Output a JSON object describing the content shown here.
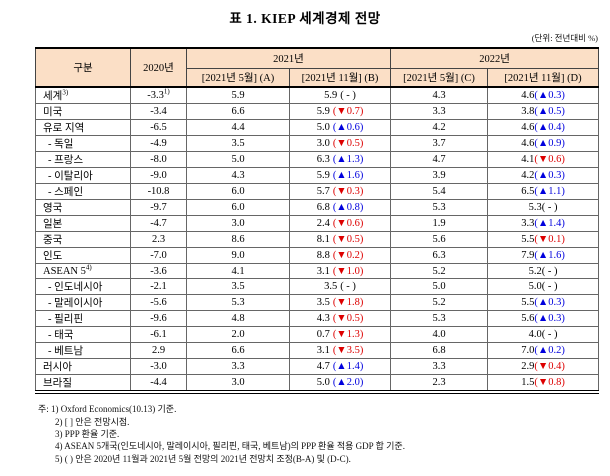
{
  "title": "표 1. KIEP 세계경제 전망",
  "unit_note": "(단위: 전년대비 %)",
  "colors": {
    "up": "#0000dd",
    "down": "#dd0000",
    "flat": "#000000",
    "header_bg": "#fbdfc6"
  },
  "columns": {
    "category": "구분",
    "y2020": "2020년",
    "y2021": "2021년",
    "y2022": "2022년",
    "sub_a": "[2021년 5월] (A)",
    "sub_b": "[2021년 11월] (B)",
    "sub_c": "[2021년 5월] (C)",
    "sub_d": "[2021년 11월] (D)"
  },
  "rows": [
    {
      "label": "세계",
      "sup": "3)",
      "indent": false,
      "y2020": "-3.3",
      "y2020_sup": "1)",
      "a": "5.9",
      "b": "5.9",
      "b_chg": "( - )",
      "b_dir": "flat",
      "c": "4.3",
      "d": "4.6",
      "d_chg": "(▲0.3)",
      "d_dir": "up"
    },
    {
      "label": "미국",
      "sup": "",
      "indent": false,
      "y2020": "-3.4",
      "y2020_sup": "",
      "a": "6.6",
      "b": "5.9",
      "b_chg": "(▼0.7)",
      "b_dir": "down",
      "c": "3.3",
      "d": "3.8",
      "d_chg": "(▲0.5)",
      "d_dir": "up"
    },
    {
      "label": "유로 지역",
      "sup": "",
      "indent": false,
      "y2020": "-6.5",
      "y2020_sup": "",
      "a": "4.4",
      "b": "5.0",
      "b_chg": "(▲0.6)",
      "b_dir": "up",
      "c": "4.2",
      "d": "4.6",
      "d_chg": "(▲0.4)",
      "d_dir": "up"
    },
    {
      "label": "- 독일",
      "sup": "",
      "indent": true,
      "y2020": "-4.9",
      "y2020_sup": "",
      "a": "3.5",
      "b": "3.0",
      "b_chg": "(▼0.5)",
      "b_dir": "down",
      "c": "3.7",
      "d": "4.6",
      "d_chg": "(▲0.9)",
      "d_dir": "up"
    },
    {
      "label": "- 프랑스",
      "sup": "",
      "indent": true,
      "y2020": "-8.0",
      "y2020_sup": "",
      "a": "5.0",
      "b": "6.3",
      "b_chg": "(▲1.3)",
      "b_dir": "up",
      "c": "4.7",
      "d": "4.1",
      "d_chg": "(▼0.6)",
      "d_dir": "down"
    },
    {
      "label": "- 이탈리아",
      "sup": "",
      "indent": true,
      "y2020": "-9.0",
      "y2020_sup": "",
      "a": "4.3",
      "b": "5.9",
      "b_chg": "(▲1.6)",
      "b_dir": "up",
      "c": "3.9",
      "d": "4.2",
      "d_chg": "(▲0.3)",
      "d_dir": "up"
    },
    {
      "label": "- 스페인",
      "sup": "",
      "indent": true,
      "y2020": "-10.8",
      "y2020_sup": "",
      "a": "6.0",
      "b": "5.7",
      "b_chg": "(▼0.3)",
      "b_dir": "down",
      "c": "5.4",
      "d": "6.5",
      "d_chg": "(▲1.1)",
      "d_dir": "up"
    },
    {
      "label": "영국",
      "sup": "",
      "indent": false,
      "y2020": "-9.7",
      "y2020_sup": "",
      "a": "6.0",
      "b": "6.8",
      "b_chg": "(▲0.8)",
      "b_dir": "up",
      "c": "5.3",
      "d": "5.3",
      "d_chg": "( - )",
      "d_dir": "flat"
    },
    {
      "label": "일본",
      "sup": "",
      "indent": false,
      "y2020": "-4.7",
      "y2020_sup": "",
      "a": "3.0",
      "b": "2.4",
      "b_chg": "(▼0.6)",
      "b_dir": "down",
      "c": "1.9",
      "d": "3.3",
      "d_chg": "(▲1.4)",
      "d_dir": "up"
    },
    {
      "label": "중국",
      "sup": "",
      "indent": false,
      "y2020": "2.3",
      "y2020_sup": "",
      "a": "8.6",
      "b": "8.1",
      "b_chg": "(▼0.5)",
      "b_dir": "down",
      "c": "5.6",
      "d": "5.5",
      "d_chg": "(▼0.1)",
      "d_dir": "down"
    },
    {
      "label": "인도",
      "sup": "",
      "indent": false,
      "y2020": "-7.0",
      "y2020_sup": "",
      "a": "9.0",
      "b": "8.8",
      "b_chg": "(▼0.2)",
      "b_dir": "down",
      "c": "6.3",
      "d": "7.9",
      "d_chg": "(▲1.6)",
      "d_dir": "up"
    },
    {
      "label": "ASEAN 5",
      "sup": "4)",
      "indent": false,
      "y2020": "-3.6",
      "y2020_sup": "",
      "a": "4.1",
      "b": "3.1",
      "b_chg": "(▼1.0)",
      "b_dir": "down",
      "c": "5.2",
      "d": "5.2",
      "d_chg": "( - )",
      "d_dir": "flat"
    },
    {
      "label": "- 인도네시아",
      "sup": "",
      "indent": true,
      "y2020": "-2.1",
      "y2020_sup": "",
      "a": "3.5",
      "b": "3.5",
      "b_chg": "( - )",
      "b_dir": "flat",
      "c": "5.0",
      "d": "5.0",
      "d_chg": "( - )",
      "d_dir": "flat"
    },
    {
      "label": "- 말레이시아",
      "sup": "",
      "indent": true,
      "y2020": "-5.6",
      "y2020_sup": "",
      "a": "5.3",
      "b": "3.5",
      "b_chg": "(▼1.8)",
      "b_dir": "down",
      "c": "5.2",
      "d": "5.5",
      "d_chg": "(▲0.3)",
      "d_dir": "up"
    },
    {
      "label": "- 필리핀",
      "sup": "",
      "indent": true,
      "y2020": "-9.6",
      "y2020_sup": "",
      "a": "4.8",
      "b": "4.3",
      "b_chg": "(▼0.5)",
      "b_dir": "down",
      "c": "5.3",
      "d": "5.6",
      "d_chg": "(▲0.3)",
      "d_dir": "up"
    },
    {
      "label": "- 태국",
      "sup": "",
      "indent": true,
      "y2020": "-6.1",
      "y2020_sup": "",
      "a": "2.0",
      "b": "0.7",
      "b_chg": "(▼1.3)",
      "b_dir": "down",
      "c": "4.0",
      "d": "4.0",
      "d_chg": "( - )",
      "d_dir": "flat"
    },
    {
      "label": "- 베트남",
      "sup": "",
      "indent": true,
      "y2020": "2.9",
      "y2020_sup": "",
      "a": "6.6",
      "b": "3.1",
      "b_chg": "(▼3.5)",
      "b_dir": "down",
      "c": "6.8",
      "d": "7.0",
      "d_chg": "(▲0.2)",
      "d_dir": "up"
    },
    {
      "label": "러시아",
      "sup": "",
      "indent": false,
      "y2020": "-3.0",
      "y2020_sup": "",
      "a": "3.3",
      "b": "4.7",
      "b_chg": "(▲1.4)",
      "b_dir": "up",
      "c": "3.3",
      "d": "2.9",
      "d_chg": "(▼0.4)",
      "d_dir": "down"
    },
    {
      "label": "브라질",
      "sup": "",
      "indent": false,
      "y2020": "-4.4",
      "y2020_sup": "",
      "a": "3.0",
      "b": "5.0",
      "b_chg": "(▲2.0)",
      "b_dir": "up",
      "c": "2.3",
      "d": "1.5",
      "d_chg": "(▼0.8)",
      "d_dir": "down"
    }
  ],
  "notes": [
    "주: 1) Oxford Economics(10.13) 기준.",
    "2) [ ] 안은 전망시점.",
    "3) PPP 환율 기준.",
    "4) ASEAN 5개국(인도네시아, 말레이시아, 필리핀, 태국, 베트남)의 PPP 환율 적용 GDP 합 기준.",
    "5) ( ) 안은 2020년 11월과 2021년 5월 전망의 2021년 전망치 조정(B-A) 및 (D-C)."
  ]
}
